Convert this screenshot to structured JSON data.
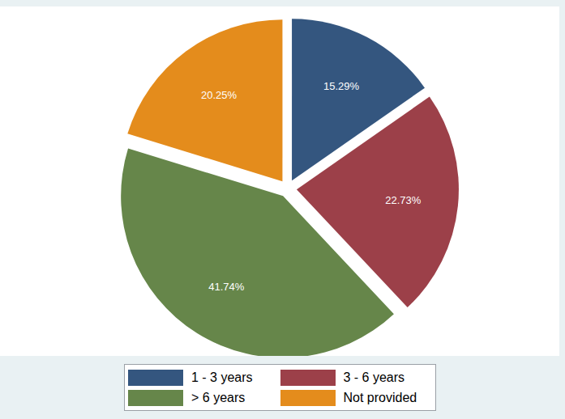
{
  "chart_data": {
    "type": "pie",
    "categories": [
      "1 - 3 years",
      "3 - 6 years",
      "> 6 years",
      "Not provided"
    ],
    "values": [
      15.29,
      22.73,
      41.74,
      20.25
    ],
    "value_labels": [
      "15.29%",
      "22.73%",
      "41.74%",
      "20.25%"
    ],
    "colors": [
      "#34567f",
      "#9c4049",
      "#66864a",
      "#e48c1c"
    ],
    "data_labels": true,
    "legend": "bottom"
  }
}
